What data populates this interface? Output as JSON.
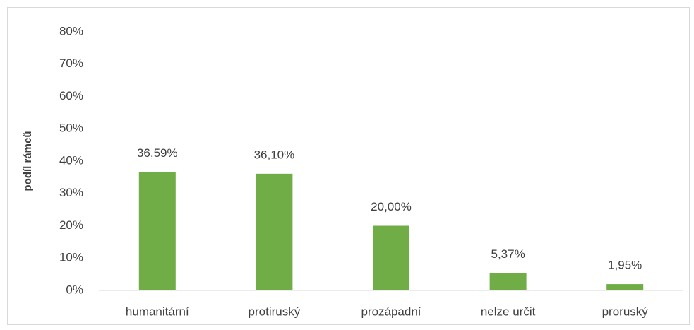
{
  "chart_data": {
    "type": "bar",
    "y_label": "podíl rámců",
    "categories": [
      "humanitární",
      "protiruský",
      "prozápadní",
      "nelze určit",
      "proruský"
    ],
    "values": [
      36.59,
      36.1,
      20.0,
      5.37,
      1.95
    ],
    "value_labels": [
      "36,59%",
      "36,10%",
      "20,00%",
      "5,37%",
      "1,95%"
    ],
    "color": "#70ad47",
    "ylim": [
      0,
      80
    ],
    "yticks": [
      {
        "value": 0,
        "label": "0%"
      },
      {
        "value": 10,
        "label": "10%"
      },
      {
        "value": 20,
        "label": "20%"
      },
      {
        "value": 30,
        "label": "30%"
      },
      {
        "value": 40,
        "label": "40%"
      },
      {
        "value": 50,
        "label": "50%"
      },
      {
        "value": 60,
        "label": "60%"
      },
      {
        "value": 70,
        "label": "70%"
      },
      {
        "value": 80,
        "label": "80%"
      }
    ],
    "grid": false
  }
}
